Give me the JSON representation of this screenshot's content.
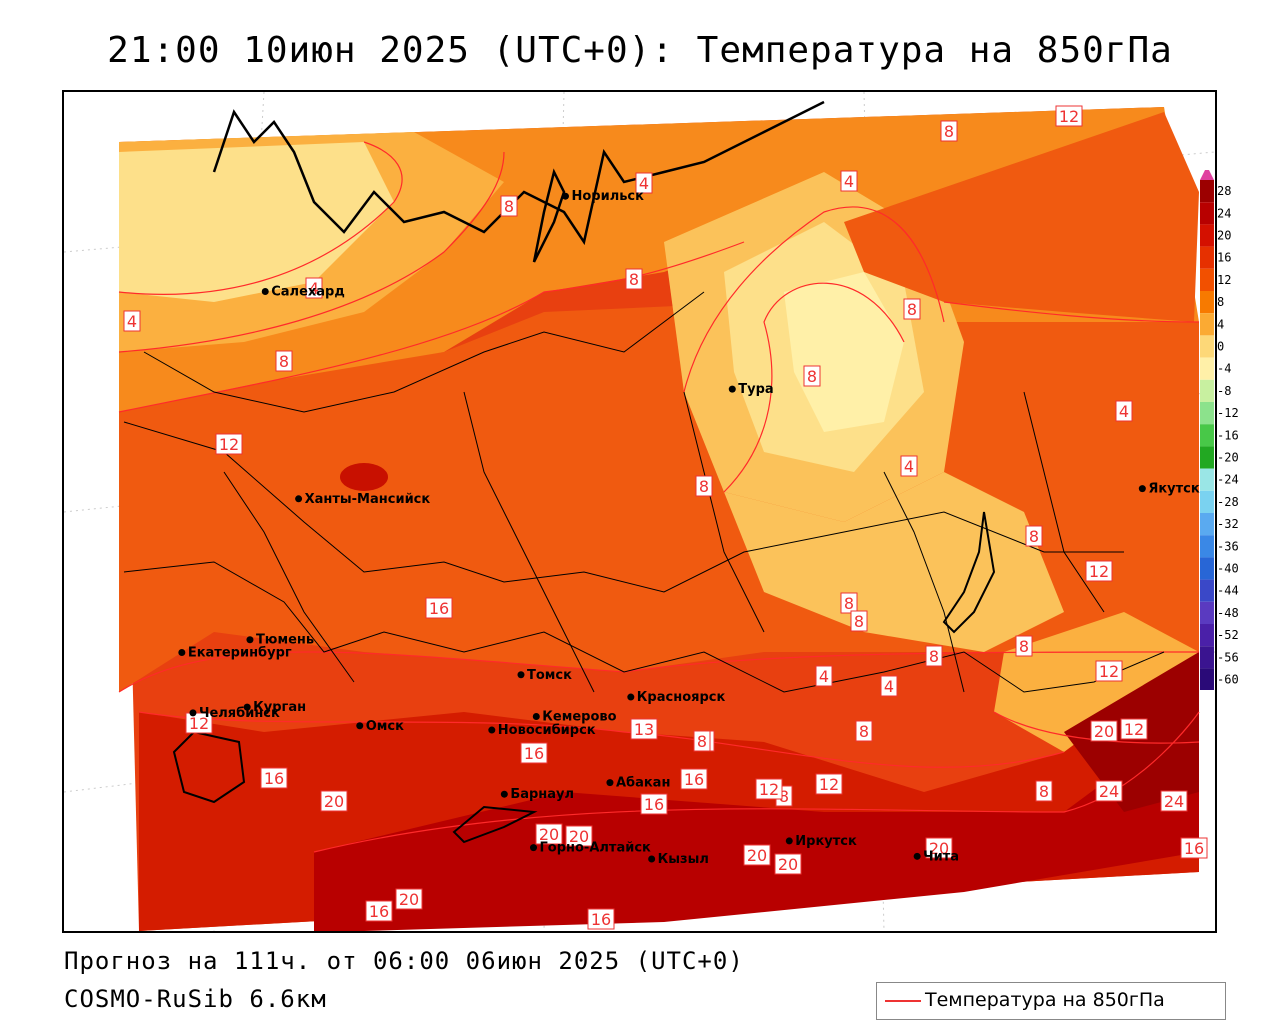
{
  "title": "21:00 10июн 2025 (UTC+0): Температура на 850гПа",
  "footer": {
    "forecast_line": "Прогноз на 111ч. от 06:00 06июн 2025 (UTC+0)",
    "model_line": "COSMO-RuSib 6.6км"
  },
  "legend": {
    "label": "Температура на 850гПа",
    "color": "#e33333"
  },
  "cities": [
    {
      "name": "Салехард",
      "lon": 66.6,
      "lat": 66.5
    },
    {
      "name": "Норильск",
      "lon": 88.2,
      "lat": 69.3
    },
    {
      "name": "Якутск",
      "lon": 129.7,
      "lat": 62.0
    },
    {
      "name": "Тура",
      "lon": 100.2,
      "lat": 64.3
    },
    {
      "name": "Ханты-Мансийск",
      "lon": 69.0,
      "lat": 61.0
    },
    {
      "name": "Екатеринбург",
      "lon": 60.6,
      "lat": 56.8
    },
    {
      "name": "Тюмень",
      "lon": 65.5,
      "lat": 57.2
    },
    {
      "name": "Челябинск",
      "lon": 61.4,
      "lat": 55.2
    },
    {
      "name": "Курган",
      "lon": 65.3,
      "lat": 55.4
    },
    {
      "name": "Омск",
      "lon": 73.4,
      "lat": 55.0
    },
    {
      "name": "Новосибирск",
      "lon": 82.9,
      "lat": 55.0
    },
    {
      "name": "Томск",
      "lon": 85.0,
      "lat": 56.5
    },
    {
      "name": "Кемерово",
      "lon": 86.1,
      "lat": 55.4
    },
    {
      "name": "Красноярск",
      "lon": 92.9,
      "lat": 56.0
    },
    {
      "name": "Барнаул",
      "lon": 83.8,
      "lat": 53.3
    },
    {
      "name": "Абакан",
      "lon": 91.4,
      "lat": 53.7
    },
    {
      "name": "Горно-Алтайск",
      "lon": 85.9,
      "lat": 51.9
    },
    {
      "name": "Кызыл",
      "lon": 94.4,
      "lat": 51.7
    },
    {
      "name": "Иркутск",
      "lon": 104.3,
      "lat": 52.3
    },
    {
      "name": "Чита",
      "lon": 113.5,
      "lat": 52.0
    }
  ],
  "isotherm_labels": [
    "12",
    "8",
    "4",
    "4",
    "8",
    "8",
    "4",
    "4",
    "8",
    "8",
    "8",
    "4",
    "4",
    "8",
    "12",
    "8",
    "8",
    "8",
    "12",
    "8",
    "8",
    "8",
    "4",
    "4",
    "8",
    "8",
    "12",
    "8",
    "12",
    "20",
    "24",
    "24",
    "16",
    "16",
    "16",
    "12",
    "12",
    "12",
    "16",
    "16",
    "16",
    "20",
    "20",
    "20",
    "20",
    "20",
    "20",
    "16",
    "16",
    "20",
    "13",
    "8"
  ],
  "colorbar": {
    "ticks": [
      "28",
      "24",
      "20",
      "16",
      "12",
      "8",
      "4",
      "0",
      "-4",
      "-8",
      "-12",
      "-16",
      "-20",
      "-24",
      "-28",
      "-32",
      "-36",
      "-40",
      "-44",
      "-48",
      "-52",
      "-56",
      "-60"
    ],
    "colors": [
      "#9c0000",
      "#b80000",
      "#d41000",
      "#e63000",
      "#f25000",
      "#f77a00",
      "#fbaa33",
      "#fdd878",
      "#fff0a8",
      "#c8f0a0",
      "#8ce28c",
      "#48c848",
      "#22a822",
      "#9ae6e6",
      "#7ad2f0",
      "#5aaaf0",
      "#3a88e6",
      "#2866d6",
      "#3a48c8",
      "#5a3ac0",
      "#4a20a8",
      "#3a1490",
      "#2a0a78",
      "#1a0060"
    ],
    "top_arrow_color": "#e040a0",
    "bottom_arrow_color": "#5a00a0"
  }
}
